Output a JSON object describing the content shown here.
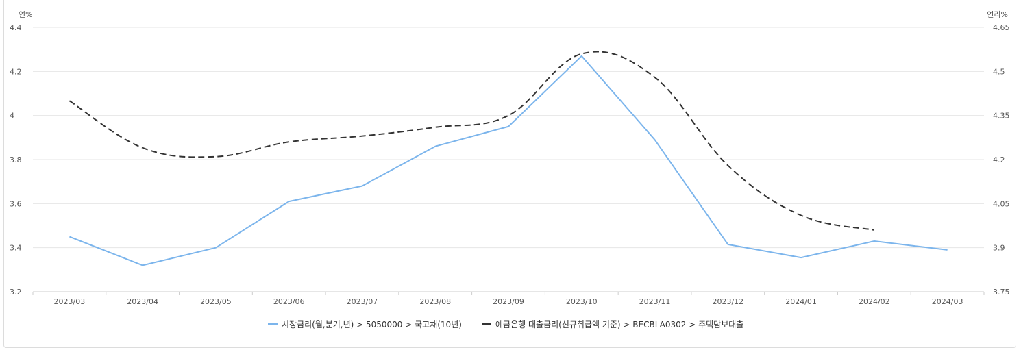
{
  "chart_data": {
    "type": "line",
    "categories": [
      "2023/03",
      "2023/04",
      "2023/05",
      "2023/06",
      "2023/07",
      "2023/08",
      "2023/09",
      "2023/10",
      "2023/11",
      "2023/12",
      "2024/01",
      "2024/02",
      "2024/03"
    ],
    "left_axis": {
      "unit": "연%",
      "ylim": [
        3.2,
        4.4
      ],
      "ticks": [
        "3.2",
        "3.4",
        "3.6",
        "3.8",
        "4",
        "4.2",
        "4.4"
      ]
    },
    "right_axis": {
      "unit": "연리%",
      "ylim": [
        3.75,
        4.65
      ],
      "ticks": [
        "3.75",
        "3.9",
        "4.05",
        "4.2",
        "4.35",
        "4.5",
        "4.65"
      ]
    },
    "series": [
      {
        "name": "시장금리(월,분기,년) > 5050000 > 국고채(10년)",
        "axis": "left",
        "color": "#7cb5ec",
        "style": "solid",
        "values": [
          3.45,
          3.32,
          3.4,
          3.61,
          3.68,
          3.86,
          3.95,
          4.27,
          3.89,
          3.415,
          3.355,
          3.43,
          3.39
        ]
      },
      {
        "name": "예금은행 대출금리(신규취급액 기준) > BECBLA0302 > 주택담보대출",
        "axis": "right",
        "color": "#333333",
        "style": "dashed",
        "values": [
          4.4,
          4.24,
          4.21,
          4.26,
          4.28,
          4.31,
          4.35,
          4.56,
          4.48,
          4.18,
          4.01,
          3.96,
          null
        ]
      }
    ],
    "grid": "horizontal",
    "legend_position": "bottom-center"
  }
}
